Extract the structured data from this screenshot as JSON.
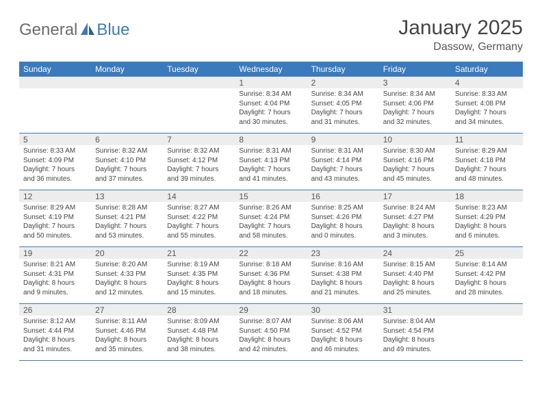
{
  "logo": {
    "text_general": "General",
    "text_blue": "Blue"
  },
  "title": "January 2025",
  "location": "Dassow, Germany",
  "colors": {
    "header_bg": "#3a7abd",
    "daynum_bg": "#ededed",
    "rule": "#3a7abd",
    "text": "#444444",
    "title_text": "#444444"
  },
  "weekdays": [
    "Sunday",
    "Monday",
    "Tuesday",
    "Wednesday",
    "Thursday",
    "Friday",
    "Saturday"
  ],
  "weeks": [
    [
      {
        "day": "",
        "sunrise": "",
        "sunset": "",
        "daylight": ""
      },
      {
        "day": "",
        "sunrise": "",
        "sunset": "",
        "daylight": ""
      },
      {
        "day": "",
        "sunrise": "",
        "sunset": "",
        "daylight": ""
      },
      {
        "day": "1",
        "sunrise": "Sunrise: 8:34 AM",
        "sunset": "Sunset: 4:04 PM",
        "daylight": "Daylight: 7 hours and 30 minutes."
      },
      {
        "day": "2",
        "sunrise": "Sunrise: 8:34 AM",
        "sunset": "Sunset: 4:05 PM",
        "daylight": "Daylight: 7 hours and 31 minutes."
      },
      {
        "day": "3",
        "sunrise": "Sunrise: 8:34 AM",
        "sunset": "Sunset: 4:06 PM",
        "daylight": "Daylight: 7 hours and 32 minutes."
      },
      {
        "day": "4",
        "sunrise": "Sunrise: 8:33 AM",
        "sunset": "Sunset: 4:08 PM",
        "daylight": "Daylight: 7 hours and 34 minutes."
      }
    ],
    [
      {
        "day": "5",
        "sunrise": "Sunrise: 8:33 AM",
        "sunset": "Sunset: 4:09 PM",
        "daylight": "Daylight: 7 hours and 36 minutes."
      },
      {
        "day": "6",
        "sunrise": "Sunrise: 8:32 AM",
        "sunset": "Sunset: 4:10 PM",
        "daylight": "Daylight: 7 hours and 37 minutes."
      },
      {
        "day": "7",
        "sunrise": "Sunrise: 8:32 AM",
        "sunset": "Sunset: 4:12 PM",
        "daylight": "Daylight: 7 hours and 39 minutes."
      },
      {
        "day": "8",
        "sunrise": "Sunrise: 8:31 AM",
        "sunset": "Sunset: 4:13 PM",
        "daylight": "Daylight: 7 hours and 41 minutes."
      },
      {
        "day": "9",
        "sunrise": "Sunrise: 8:31 AM",
        "sunset": "Sunset: 4:14 PM",
        "daylight": "Daylight: 7 hours and 43 minutes."
      },
      {
        "day": "10",
        "sunrise": "Sunrise: 8:30 AM",
        "sunset": "Sunset: 4:16 PM",
        "daylight": "Daylight: 7 hours and 45 minutes."
      },
      {
        "day": "11",
        "sunrise": "Sunrise: 8:29 AM",
        "sunset": "Sunset: 4:18 PM",
        "daylight": "Daylight: 7 hours and 48 minutes."
      }
    ],
    [
      {
        "day": "12",
        "sunrise": "Sunrise: 8:29 AM",
        "sunset": "Sunset: 4:19 PM",
        "daylight": "Daylight: 7 hours and 50 minutes."
      },
      {
        "day": "13",
        "sunrise": "Sunrise: 8:28 AM",
        "sunset": "Sunset: 4:21 PM",
        "daylight": "Daylight: 7 hours and 53 minutes."
      },
      {
        "day": "14",
        "sunrise": "Sunrise: 8:27 AM",
        "sunset": "Sunset: 4:22 PM",
        "daylight": "Daylight: 7 hours and 55 minutes."
      },
      {
        "day": "15",
        "sunrise": "Sunrise: 8:26 AM",
        "sunset": "Sunset: 4:24 PM",
        "daylight": "Daylight: 7 hours and 58 minutes."
      },
      {
        "day": "16",
        "sunrise": "Sunrise: 8:25 AM",
        "sunset": "Sunset: 4:26 PM",
        "daylight": "Daylight: 8 hours and 0 minutes."
      },
      {
        "day": "17",
        "sunrise": "Sunrise: 8:24 AM",
        "sunset": "Sunset: 4:27 PM",
        "daylight": "Daylight: 8 hours and 3 minutes."
      },
      {
        "day": "18",
        "sunrise": "Sunrise: 8:23 AM",
        "sunset": "Sunset: 4:29 PM",
        "daylight": "Daylight: 8 hours and 6 minutes."
      }
    ],
    [
      {
        "day": "19",
        "sunrise": "Sunrise: 8:21 AM",
        "sunset": "Sunset: 4:31 PM",
        "daylight": "Daylight: 8 hours and 9 minutes."
      },
      {
        "day": "20",
        "sunrise": "Sunrise: 8:20 AM",
        "sunset": "Sunset: 4:33 PM",
        "daylight": "Daylight: 8 hours and 12 minutes."
      },
      {
        "day": "21",
        "sunrise": "Sunrise: 8:19 AM",
        "sunset": "Sunset: 4:35 PM",
        "daylight": "Daylight: 8 hours and 15 minutes."
      },
      {
        "day": "22",
        "sunrise": "Sunrise: 8:18 AM",
        "sunset": "Sunset: 4:36 PM",
        "daylight": "Daylight: 8 hours and 18 minutes."
      },
      {
        "day": "23",
        "sunrise": "Sunrise: 8:16 AM",
        "sunset": "Sunset: 4:38 PM",
        "daylight": "Daylight: 8 hours and 21 minutes."
      },
      {
        "day": "24",
        "sunrise": "Sunrise: 8:15 AM",
        "sunset": "Sunset: 4:40 PM",
        "daylight": "Daylight: 8 hours and 25 minutes."
      },
      {
        "day": "25",
        "sunrise": "Sunrise: 8:14 AM",
        "sunset": "Sunset: 4:42 PM",
        "daylight": "Daylight: 8 hours and 28 minutes."
      }
    ],
    [
      {
        "day": "26",
        "sunrise": "Sunrise: 8:12 AM",
        "sunset": "Sunset: 4:44 PM",
        "daylight": "Daylight: 8 hours and 31 minutes."
      },
      {
        "day": "27",
        "sunrise": "Sunrise: 8:11 AM",
        "sunset": "Sunset: 4:46 PM",
        "daylight": "Daylight: 8 hours and 35 minutes."
      },
      {
        "day": "28",
        "sunrise": "Sunrise: 8:09 AM",
        "sunset": "Sunset: 4:48 PM",
        "daylight": "Daylight: 8 hours and 38 minutes."
      },
      {
        "day": "29",
        "sunrise": "Sunrise: 8:07 AM",
        "sunset": "Sunset: 4:50 PM",
        "daylight": "Daylight: 8 hours and 42 minutes."
      },
      {
        "day": "30",
        "sunrise": "Sunrise: 8:06 AM",
        "sunset": "Sunset: 4:52 PM",
        "daylight": "Daylight: 8 hours and 46 minutes."
      },
      {
        "day": "31",
        "sunrise": "Sunrise: 8:04 AM",
        "sunset": "Sunset: 4:54 PM",
        "daylight": "Daylight: 8 hours and 49 minutes."
      },
      {
        "day": "",
        "sunrise": "",
        "sunset": "",
        "daylight": ""
      }
    ]
  ]
}
